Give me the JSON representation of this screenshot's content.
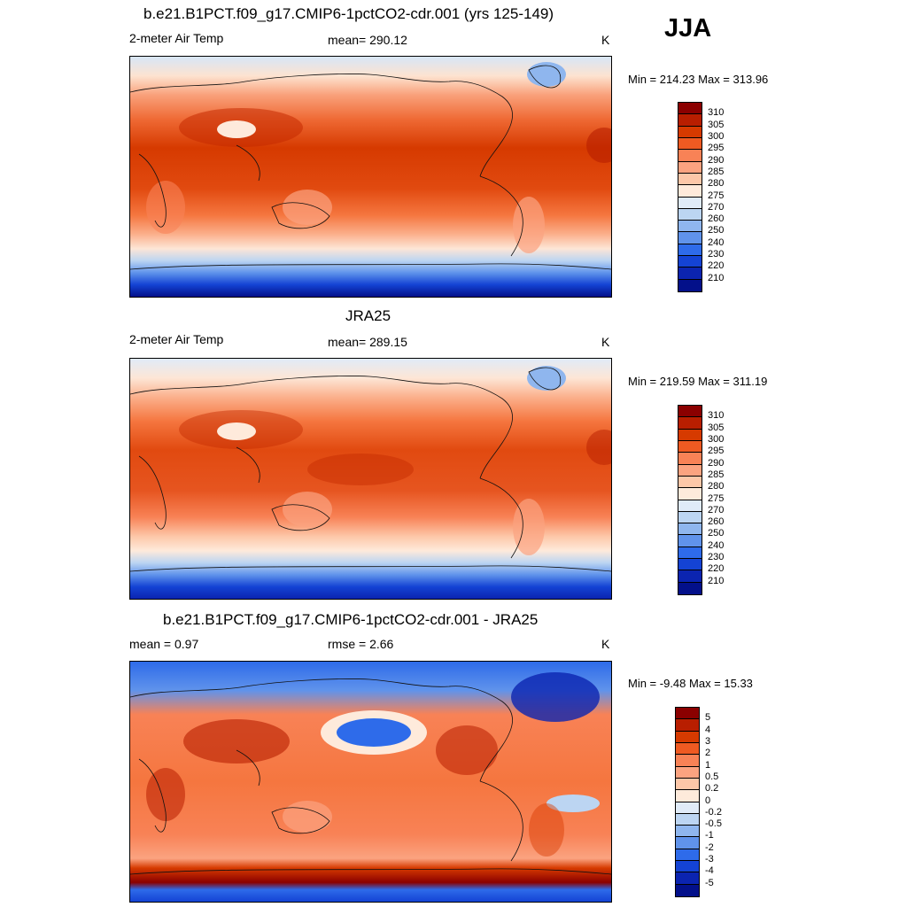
{
  "season": "JJA",
  "panel1": {
    "title": "b.e21.B1PCT.f09_g17.CMIP6-1pctCO2-cdr.001 (yrs 125-149)",
    "left": "2-meter Air Temp",
    "center": "mean= 290.12",
    "units": "K",
    "minmax": "Min = 214.23 Max = 313.96"
  },
  "panel2": {
    "title": "JRA25",
    "left": "2-meter Air Temp",
    "center": "mean= 289.15",
    "units": "K",
    "minmax": "Min = 219.59 Max = 311.19"
  },
  "panel3": {
    "title": "b.e21.B1PCT.f09_g17.CMIP6-1pctCO2-cdr.001 - JRA25",
    "left": "mean =   0.97",
    "center": "rmse =   2.66",
    "units": "K",
    "minmax": "Min =  -9.48 Max =  15.33"
  },
  "temp_colorbar": {
    "labels": [
      "310",
      "305",
      "300",
      "295",
      "290",
      "285",
      "280",
      "275",
      "270",
      "260",
      "250",
      "240",
      "230",
      "220",
      "210"
    ],
    "colors": [
      "#8b0000",
      "#b81e00",
      "#d63a00",
      "#ef5a22",
      "#f88256",
      "#fba380",
      "#fdc7a8",
      "#feeadb",
      "#e0ebf8",
      "#bcd5f2",
      "#8fb6ee",
      "#6093eb",
      "#2e6bea",
      "#1443d4",
      "#0b24b0",
      "#03108a"
    ]
  },
  "diff_colorbar": {
    "labels": [
      "5",
      "4",
      "3",
      "2",
      "1",
      "0.5",
      "0.2",
      "0",
      "-0.2",
      "-0.5",
      "-1",
      "-2",
      "-3",
      "-4",
      "-5"
    ],
    "colors": [
      "#8b0000",
      "#b81e00",
      "#d63a00",
      "#ef5a22",
      "#f88256",
      "#fba380",
      "#fdc7a8",
      "#feeadb",
      "#e0ebf8",
      "#bcd5f2",
      "#8fb6ee",
      "#6093eb",
      "#2e6bea",
      "#1443d4",
      "#0b24b0",
      "#03108a"
    ]
  }
}
